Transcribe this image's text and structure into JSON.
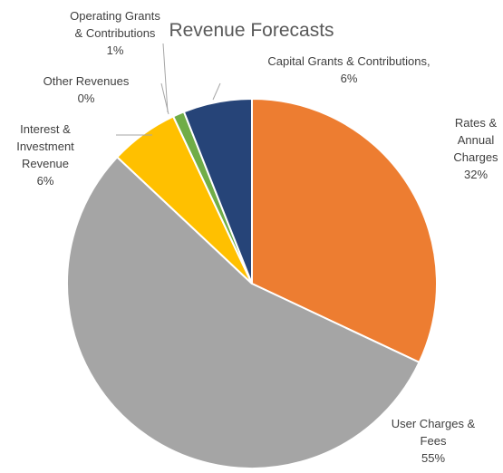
{
  "chart_data": {
    "type": "pie",
    "title": "Revenue Forecasts",
    "categories": [
      "Rates & Annual Charges",
      "User Charges & Fees",
      "Interest & Investment Revenue",
      "Other Revenues",
      "Operating Grants & Contributions",
      "Capital Grants & Contributions,"
    ],
    "values": [
      32,
      55,
      6,
      0,
      1,
      6
    ],
    "value_labels": [
      "32%",
      "55%",
      "6%",
      "0%",
      "1%",
      "6%"
    ],
    "colors": [
      "#ed7d31",
      "#a5a5a5",
      "#ffc000",
      "#5b9bd5",
      "#70ad47",
      "#264478"
    ]
  }
}
